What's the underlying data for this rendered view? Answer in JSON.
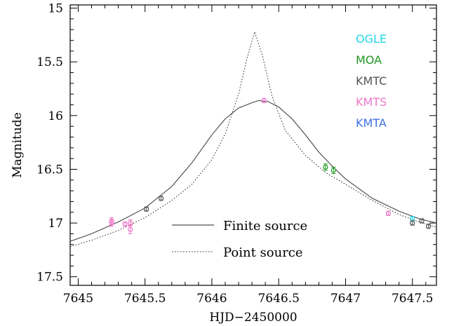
{
  "chart_data": {
    "type": "scatter",
    "xlabel": "HJD−2450000",
    "ylabel": "Magnitude",
    "xlim": [
      7644.94,
      7647.68
    ],
    "ylim": [
      17.58,
      14.97
    ],
    "x_ticks": [
      7645,
      7645.5,
      7646,
      7646.5,
      7647,
      7647.5
    ],
    "x_tick_labels": [
      "7645",
      "7645.5",
      "7646",
      "7646.5",
      "7647",
      "7647.5"
    ],
    "y_ticks": [
      15,
      15.5,
      16,
      16.5,
      17,
      17.5
    ],
    "y_tick_labels": [
      "15",
      "15.5",
      "16",
      "16.5",
      "17",
      "17.5"
    ],
    "legend_position": "top-right",
    "observatories": [
      {
        "name": "OGLE",
        "color": "#22d8e8",
        "points": [
          {
            "x": 7647.5,
            "y": 16.96,
            "err": 0.02
          }
        ]
      },
      {
        "name": "MOA",
        "color": "#1f9a1f",
        "points": [
          {
            "x": 7646.85,
            "y": 16.48,
            "err": 0.03
          },
          {
            "x": 7646.91,
            "y": 16.51,
            "err": 0.03
          }
        ]
      },
      {
        "name": "KMTC",
        "color": "#555555",
        "points": [
          {
            "x": 7645.51,
            "y": 16.87,
            "err": 0.02
          },
          {
            "x": 7645.62,
            "y": 16.77,
            "err": 0.02
          },
          {
            "x": 7647.5,
            "y": 17.0,
            "err": 0.02
          },
          {
            "x": 7647.57,
            "y": 16.98,
            "err": 0.02
          },
          {
            "x": 7647.62,
            "y": 17.03,
            "err": 0.02
          }
        ]
      },
      {
        "name": "KMTS",
        "color": "#ee77c8",
        "points": [
          {
            "x": 7645.25,
            "y": 16.98,
            "err": 0.03
          },
          {
            "x": 7645.25,
            "y": 17.0,
            "err": 0.03
          },
          {
            "x": 7645.35,
            "y": 17.01,
            "err": 0.02
          },
          {
            "x": 7645.39,
            "y": 17.0,
            "err": 0.03
          },
          {
            "x": 7645.39,
            "y": 17.06,
            "err": 0.04
          },
          {
            "x": 7646.39,
            "y": 15.86,
            "err": 0.02
          },
          {
            "x": 7647.32,
            "y": 16.91,
            "err": 0.02
          }
        ]
      },
      {
        "name": "KMTA",
        "color": "#3f72e6",
        "points": []
      }
    ],
    "models": [
      {
        "name": "Finite source",
        "style": "solid",
        "points": [
          [
            7644.94,
            17.17
          ],
          [
            7645.1,
            17.1
          ],
          [
            7645.3,
            16.99
          ],
          [
            7645.5,
            16.86
          ],
          [
            7645.7,
            16.66
          ],
          [
            7645.85,
            16.44
          ],
          [
            7646.0,
            16.18
          ],
          [
            7646.1,
            16.03
          ],
          [
            7646.2,
            15.93
          ],
          [
            7646.3,
            15.88
          ],
          [
            7646.35,
            15.86
          ],
          [
            7646.42,
            15.87
          ],
          [
            7646.5,
            15.92
          ],
          [
            7646.6,
            16.03
          ],
          [
            7646.7,
            16.18
          ],
          [
            7646.8,
            16.34
          ],
          [
            7646.9,
            16.47
          ],
          [
            7647.0,
            16.59
          ],
          [
            7647.2,
            16.77
          ],
          [
            7647.4,
            16.89
          ],
          [
            7647.55,
            16.96
          ],
          [
            7647.68,
            17.0
          ]
        ]
      },
      {
        "name": "Point source",
        "style": "dotted",
        "points": [
          [
            7644.94,
            17.22
          ],
          [
            7645.1,
            17.16
          ],
          [
            7645.3,
            17.07
          ],
          [
            7645.5,
            16.95
          ],
          [
            7645.7,
            16.79
          ],
          [
            7645.85,
            16.64
          ],
          [
            7646.0,
            16.41
          ],
          [
            7646.1,
            16.17
          ],
          [
            7646.2,
            15.8
          ],
          [
            7646.26,
            15.48
          ],
          [
            7646.32,
            15.22
          ],
          [
            7646.38,
            15.45
          ],
          [
            7646.45,
            15.82
          ],
          [
            7646.55,
            16.14
          ],
          [
            7646.7,
            16.37
          ],
          [
            7646.85,
            16.53
          ],
          [
            7647.0,
            16.64
          ],
          [
            7647.2,
            16.79
          ],
          [
            7647.4,
            16.92
          ],
          [
            7647.55,
            16.99
          ],
          [
            7647.68,
            17.04
          ]
        ]
      }
    ]
  }
}
